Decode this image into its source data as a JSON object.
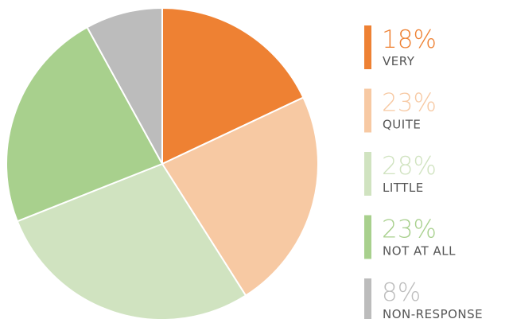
{
  "chart_data": {
    "type": "pie",
    "categories": [
      "VERY",
      "QUITE",
      "LITTLE",
      "NOT AT ALL",
      "NON-RESPONSE"
    ],
    "values": [
      18,
      23,
      28,
      23,
      8
    ],
    "value_labels": [
      "18%",
      "23%",
      "28%",
      "23%",
      "8%"
    ],
    "colors": [
      "#ee8133",
      "#f7c9a3",
      "#d0e3c0",
      "#a8d08d",
      "#bcbcbc"
    ],
    "start_angle": 0,
    "direction": "clockwise"
  }
}
